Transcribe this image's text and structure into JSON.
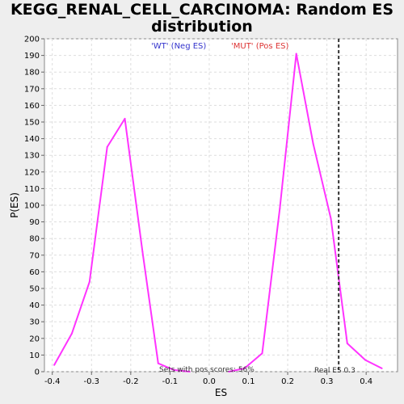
{
  "chart_data": {
    "type": "line",
    "title_line1": "KEGG_RENAL_CELL_CARCINOMA: Random ES",
    "title_line2": "distribution",
    "xlabel": "ES",
    "ylabel": "P(ES)",
    "xlim": [
      -0.42,
      0.48
    ],
    "ylim": [
      0,
      200
    ],
    "xticks": [
      -0.4,
      -0.3,
      -0.2,
      -0.1,
      0.0,
      0.1,
      0.2,
      0.3,
      0.4
    ],
    "xtick_labels": [
      "-0.4",
      "-0.3",
      "-0.2",
      "-0.1",
      "0.0",
      "0.1",
      "0.2",
      "0.3",
      "0.4"
    ],
    "yticks": [
      0,
      10,
      20,
      30,
      40,
      50,
      60,
      70,
      80,
      90,
      100,
      110,
      120,
      130,
      140,
      150,
      160,
      170,
      180,
      190,
      200
    ],
    "grid": true,
    "series": [
      {
        "name": "'WT' (Neg ES)",
        "color": "#ff33ff",
        "x": [
          -0.395,
          -0.35,
          -0.305,
          -0.26,
          -0.215,
          -0.17,
          -0.13,
          -0.09,
          -0.05
        ],
        "y": [
          4,
          23,
          54,
          135,
          152,
          72,
          5,
          1,
          0
        ]
      },
      {
        "name": "'MUT' (Pos ES)",
        "color": "#ff33ff",
        "x": [
          0.05,
          0.09,
          0.135,
          0.18,
          0.222,
          0.265,
          0.31,
          0.352,
          0.398,
          0.44
        ],
        "y": [
          0,
          2,
          11,
          98,
          191,
          137,
          92,
          17,
          7,
          2
        ]
      }
    ],
    "legend": [
      {
        "label": "'WT' (Neg ES)",
        "color": "#3333cc"
      },
      {
        "label": "'MUT' (Pos ES)",
        "color": "#dd3333"
      }
    ],
    "real_es": 0.33,
    "real_es_label": "Real ES 0.3",
    "pos_scores_label": "Sets with pos scores: 56%"
  }
}
